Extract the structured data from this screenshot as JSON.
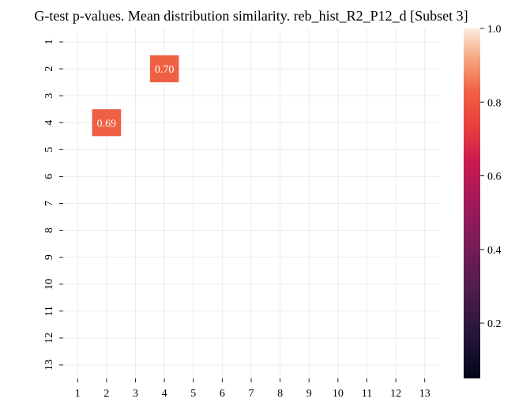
{
  "chart_data": {
    "type": "heatmap",
    "title": "G-test p-values. Mean distribution similarity. reb_hist_R2_P12_d [Subset 3]",
    "x_categories": [
      "1",
      "2",
      "3",
      "4",
      "5",
      "6",
      "7",
      "8",
      "9",
      "10",
      "11",
      "12",
      "13"
    ],
    "y_categories": [
      "1",
      "2",
      "3",
      "4",
      "5",
      "6",
      "7",
      "8",
      "9",
      "10",
      "11",
      "12",
      "13"
    ],
    "cells": [
      {
        "row": "2",
        "col": "4",
        "value": 0.7,
        "label": "0.70",
        "color": "#ef6143"
      },
      {
        "row": "4",
        "col": "2",
        "value": 0.69,
        "label": "0.69",
        "color": "#ee5f43"
      }
    ],
    "empty_cells": "blank (white)",
    "grid": true,
    "colorbar": {
      "colormap": "rocket",
      "range": [
        0.05,
        1.0
      ],
      "ticks": [
        "0.2",
        "0.4",
        "0.6",
        "0.8",
        "1.0"
      ],
      "tick_values": [
        0.2,
        0.4,
        0.6,
        0.8,
        1.0
      ],
      "position": "right"
    }
  }
}
